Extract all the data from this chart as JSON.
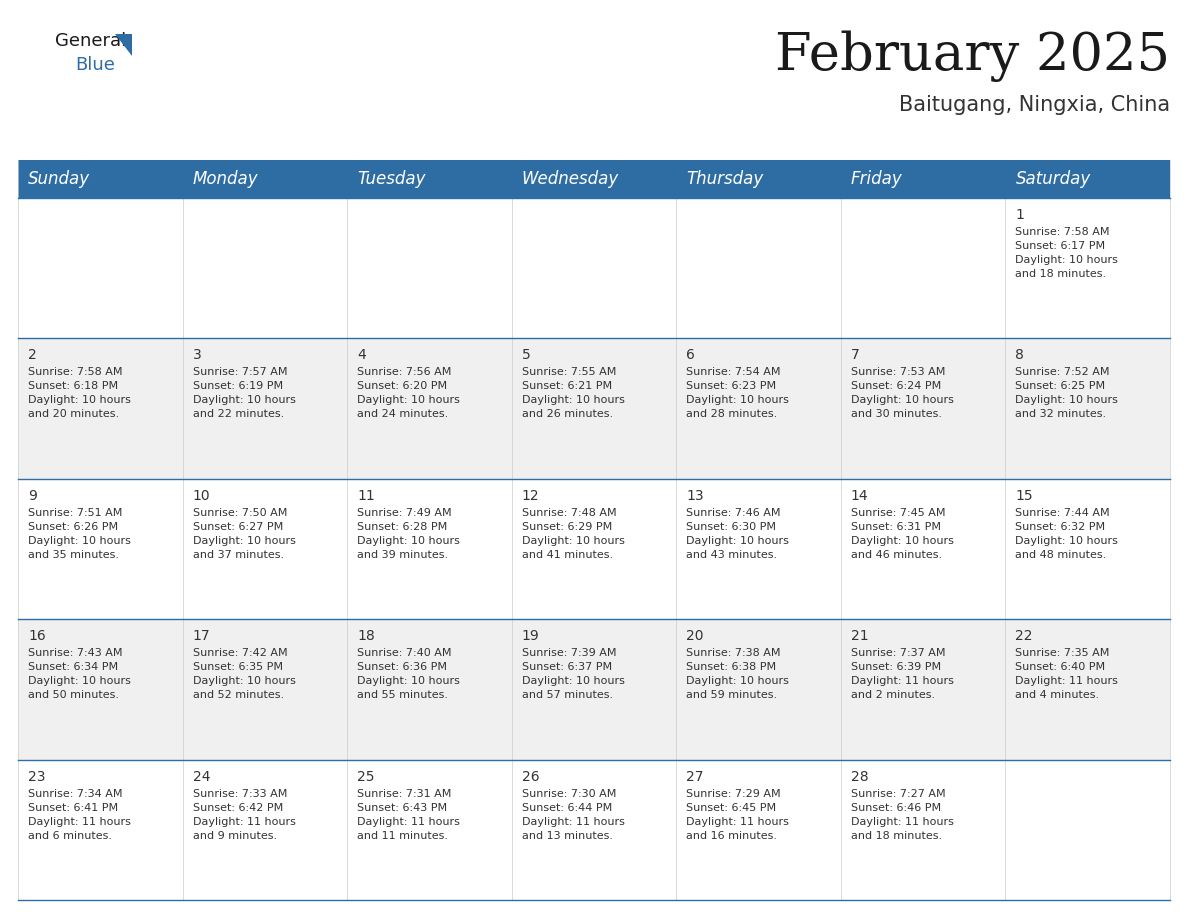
{
  "title": "February 2025",
  "subtitle": "Baitugang, Ningxia, China",
  "header_color": "#2E6DA4",
  "header_text_color": "#FFFFFF",
  "cell_bg_white": "#FFFFFF",
  "cell_bg_gray": "#F0F0F0",
  "border_color": "#2E6DA4",
  "text_color": "#333333",
  "days_of_week": [
    "Sunday",
    "Monday",
    "Tuesday",
    "Wednesday",
    "Thursday",
    "Friday",
    "Saturday"
  ],
  "weeks": [
    [
      {
        "day": null,
        "info": null
      },
      {
        "day": null,
        "info": null
      },
      {
        "day": null,
        "info": null
      },
      {
        "day": null,
        "info": null
      },
      {
        "day": null,
        "info": null
      },
      {
        "day": null,
        "info": null
      },
      {
        "day": 1,
        "info": "Sunrise: 7:58 AM\nSunset: 6:17 PM\nDaylight: 10 hours\nand 18 minutes."
      }
    ],
    [
      {
        "day": 2,
        "info": "Sunrise: 7:58 AM\nSunset: 6:18 PM\nDaylight: 10 hours\nand 20 minutes."
      },
      {
        "day": 3,
        "info": "Sunrise: 7:57 AM\nSunset: 6:19 PM\nDaylight: 10 hours\nand 22 minutes."
      },
      {
        "day": 4,
        "info": "Sunrise: 7:56 AM\nSunset: 6:20 PM\nDaylight: 10 hours\nand 24 minutes."
      },
      {
        "day": 5,
        "info": "Sunrise: 7:55 AM\nSunset: 6:21 PM\nDaylight: 10 hours\nand 26 minutes."
      },
      {
        "day": 6,
        "info": "Sunrise: 7:54 AM\nSunset: 6:23 PM\nDaylight: 10 hours\nand 28 minutes."
      },
      {
        "day": 7,
        "info": "Sunrise: 7:53 AM\nSunset: 6:24 PM\nDaylight: 10 hours\nand 30 minutes."
      },
      {
        "day": 8,
        "info": "Sunrise: 7:52 AM\nSunset: 6:25 PM\nDaylight: 10 hours\nand 32 minutes."
      }
    ],
    [
      {
        "day": 9,
        "info": "Sunrise: 7:51 AM\nSunset: 6:26 PM\nDaylight: 10 hours\nand 35 minutes."
      },
      {
        "day": 10,
        "info": "Sunrise: 7:50 AM\nSunset: 6:27 PM\nDaylight: 10 hours\nand 37 minutes."
      },
      {
        "day": 11,
        "info": "Sunrise: 7:49 AM\nSunset: 6:28 PM\nDaylight: 10 hours\nand 39 minutes."
      },
      {
        "day": 12,
        "info": "Sunrise: 7:48 AM\nSunset: 6:29 PM\nDaylight: 10 hours\nand 41 minutes."
      },
      {
        "day": 13,
        "info": "Sunrise: 7:46 AM\nSunset: 6:30 PM\nDaylight: 10 hours\nand 43 minutes."
      },
      {
        "day": 14,
        "info": "Sunrise: 7:45 AM\nSunset: 6:31 PM\nDaylight: 10 hours\nand 46 minutes."
      },
      {
        "day": 15,
        "info": "Sunrise: 7:44 AM\nSunset: 6:32 PM\nDaylight: 10 hours\nand 48 minutes."
      }
    ],
    [
      {
        "day": 16,
        "info": "Sunrise: 7:43 AM\nSunset: 6:34 PM\nDaylight: 10 hours\nand 50 minutes."
      },
      {
        "day": 17,
        "info": "Sunrise: 7:42 AM\nSunset: 6:35 PM\nDaylight: 10 hours\nand 52 minutes."
      },
      {
        "day": 18,
        "info": "Sunrise: 7:40 AM\nSunset: 6:36 PM\nDaylight: 10 hours\nand 55 minutes."
      },
      {
        "day": 19,
        "info": "Sunrise: 7:39 AM\nSunset: 6:37 PM\nDaylight: 10 hours\nand 57 minutes."
      },
      {
        "day": 20,
        "info": "Sunrise: 7:38 AM\nSunset: 6:38 PM\nDaylight: 10 hours\nand 59 minutes."
      },
      {
        "day": 21,
        "info": "Sunrise: 7:37 AM\nSunset: 6:39 PM\nDaylight: 11 hours\nand 2 minutes."
      },
      {
        "day": 22,
        "info": "Sunrise: 7:35 AM\nSunset: 6:40 PM\nDaylight: 11 hours\nand 4 minutes."
      }
    ],
    [
      {
        "day": 23,
        "info": "Sunrise: 7:34 AM\nSunset: 6:41 PM\nDaylight: 11 hours\nand 6 minutes."
      },
      {
        "day": 24,
        "info": "Sunrise: 7:33 AM\nSunset: 6:42 PM\nDaylight: 11 hours\nand 9 minutes."
      },
      {
        "day": 25,
        "info": "Sunrise: 7:31 AM\nSunset: 6:43 PM\nDaylight: 11 hours\nand 11 minutes."
      },
      {
        "day": 26,
        "info": "Sunrise: 7:30 AM\nSunset: 6:44 PM\nDaylight: 11 hours\nand 13 minutes."
      },
      {
        "day": 27,
        "info": "Sunrise: 7:29 AM\nSunset: 6:45 PM\nDaylight: 11 hours\nand 16 minutes."
      },
      {
        "day": 28,
        "info": "Sunrise: 7:27 AM\nSunset: 6:46 PM\nDaylight: 11 hours\nand 18 minutes."
      },
      {
        "day": null,
        "info": null
      }
    ]
  ],
  "title_fontsize": 38,
  "subtitle_fontsize": 15,
  "header_fontsize": 12,
  "day_number_fontsize": 10,
  "info_fontsize": 8
}
